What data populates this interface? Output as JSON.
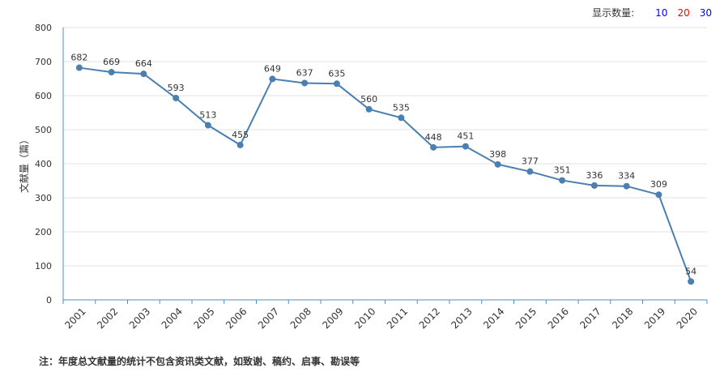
{
  "display_count": {
    "label": "显示数量:",
    "options": [
      {
        "label": "10",
        "color": "#0000ff"
      },
      {
        "label": "20",
        "color": "#ff0000"
      },
      {
        "label": "30",
        "color": "#0000ff"
      }
    ]
  },
  "footnote": "注：年度总文献量的统计不包含资讯类文献，如致谢、稿约、启事、勘误等",
  "colors": {
    "line": "#4a7fb0",
    "axis": "#4a90c8",
    "grid": "#e0e0e0",
    "text": "#333333"
  },
  "chart_data": {
    "type": "line",
    "title": "",
    "xlabel": "",
    "ylabel": "文献量（篇）",
    "ylim": [
      0,
      800
    ],
    "yticks": [
      0,
      100,
      200,
      300,
      400,
      500,
      600,
      700,
      800
    ],
    "grid": true,
    "categories": [
      "2001",
      "2002",
      "2003",
      "2004",
      "2005",
      "2006",
      "2007",
      "2008",
      "2009",
      "2010",
      "2011",
      "2012",
      "2013",
      "2014",
      "2015",
      "2016",
      "2017",
      "2018",
      "2019",
      "2020"
    ],
    "series": [
      {
        "values": [
          682,
          669,
          664,
          593,
          513,
          455,
          649,
          637,
          635,
          560,
          535,
          448,
          451,
          398,
          377,
          351,
          336,
          334,
          309,
          54
        ]
      }
    ]
  }
}
